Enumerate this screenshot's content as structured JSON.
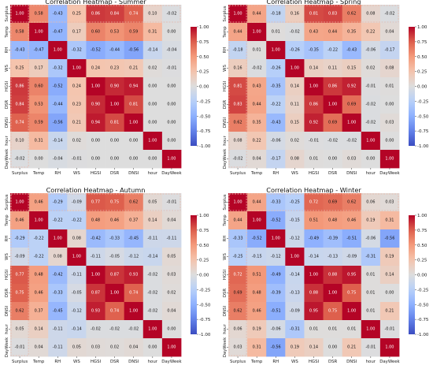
{
  "chart_data": [
    {
      "type": "heatmap",
      "title": "Correlation Heatmap - Summer",
      "labels": [
        "Surplus",
        "Temp",
        "RH",
        "WS",
        "HGSI",
        "DSR",
        "DNSI",
        "hour",
        "DayWeek"
      ],
      "colorbar": {
        "range": [
          -1,
          1
        ],
        "ticks": [
          "1.00",
          "0.75",
          "0.50",
          "0.25",
          "0.00",
          "-0.25",
          "-0.50",
          "-0.75",
          "-1.00"
        ]
      },
      "values": [
        [
          1.0,
          0.58,
          -0.43,
          0.25,
          0.86,
          0.84,
          0.74,
          0.1,
          -0.02
        ],
        [
          0.58,
          1.0,
          -0.47,
          0.17,
          0.6,
          0.53,
          0.59,
          0.31,
          -0.0
        ],
        [
          -0.43,
          -0.47,
          1.0,
          -0.32,
          -0.52,
          -0.44,
          -0.56,
          -0.14,
          -0.04
        ],
        [
          0.25,
          0.17,
          -0.32,
          1.0,
          0.24,
          0.23,
          0.21,
          0.02,
          -0.01
        ],
        [
          0.86,
          0.6,
          -0.52,
          0.24,
          1.0,
          0.9,
          0.94,
          0.0,
          0.0
        ],
        [
          0.84,
          0.53,
          -0.44,
          0.23,
          0.9,
          1.0,
          0.81,
          0.0,
          0.0
        ],
        [
          0.74,
          0.59,
          -0.56,
          0.21,
          0.94,
          0.81,
          1.0,
          0.0,
          -0.0
        ],
        [
          0.1,
          0.31,
          -0.14,
          0.02,
          0.0,
          0.0,
          0.0,
          1.0,
          -0.0
        ],
        [
          -0.02,
          -0.0,
          -0.04,
          -0.01,
          0.0,
          0.0,
          -0.0,
          -0.0,
          1.0
        ]
      ]
    },
    {
      "type": "heatmap",
      "title": "Correlation Heatmap - Spring",
      "labels": [
        "Surplus",
        "Temp",
        "RH",
        "WS",
        "HGSI",
        "DSR",
        "DNSI",
        "hour",
        "DayWeek"
      ],
      "colorbar": {
        "range": [
          -1,
          1
        ],
        "ticks": [
          "1.00",
          "0.75",
          "0.50",
          "0.25",
          "0.00",
          "-0.25",
          "-0.50",
          "-0.75",
          "-1.00"
        ]
      },
      "values": [
        [
          1.0,
          0.44,
          -0.18,
          0.16,
          0.81,
          0.83,
          0.62,
          0.08,
          -0.02
        ],
        [
          0.44,
          1.0,
          0.01,
          -0.02,
          0.43,
          0.44,
          0.35,
          0.22,
          0.04
        ],
        [
          -0.18,
          0.01,
          1.0,
          -0.26,
          -0.35,
          -0.22,
          -0.43,
          -0.06,
          -0.17
        ],
        [
          0.16,
          -0.02,
          -0.26,
          1.0,
          0.14,
          0.11,
          0.15,
          0.02,
          0.08
        ],
        [
          0.81,
          0.43,
          -0.35,
          0.14,
          1.0,
          0.86,
          0.92,
          -0.01,
          0.01
        ],
        [
          0.83,
          0.44,
          -0.22,
          0.11,
          0.86,
          1.0,
          0.69,
          -0.02,
          0.0
        ],
        [
          0.62,
          0.35,
          -0.43,
          0.15,
          0.92,
          0.69,
          1.0,
          -0.02,
          0.03
        ],
        [
          0.08,
          0.22,
          -0.06,
          0.02,
          -0.01,
          -0.02,
          -0.02,
          1.0,
          0.0
        ],
        [
          -0.02,
          0.04,
          -0.17,
          0.08,
          0.01,
          0.0,
          0.03,
          0.0,
          1.0
        ]
      ]
    },
    {
      "type": "heatmap",
      "title": "Correlation Heatmap - Autumn",
      "labels": [
        "Surplus",
        "Temp",
        "RH",
        "WS",
        "HGSI",
        "DSR",
        "DNSI",
        "hour",
        "DayWeek"
      ],
      "colorbar": {
        "range": [
          -1,
          1
        ],
        "ticks": [
          "1.00",
          "0.75",
          "0.50",
          "0.25",
          "0.00",
          "-0.25",
          "-0.50",
          "-0.75",
          "-1.00"
        ]
      },
      "values": [
        [
          1.0,
          0.46,
          -0.29,
          -0.09,
          0.77,
          0.75,
          0.62,
          0.05,
          -0.01
        ],
        [
          0.46,
          1.0,
          -0.22,
          -0.22,
          0.48,
          0.46,
          0.37,
          0.14,
          0.04
        ],
        [
          -0.29,
          -0.22,
          1.0,
          0.08,
          -0.42,
          -0.33,
          -0.45,
          -0.11,
          -0.11
        ],
        [
          -0.09,
          -0.22,
          0.08,
          1.0,
          -0.11,
          -0.05,
          -0.12,
          -0.14,
          0.05
        ],
        [
          0.77,
          0.48,
          -0.42,
          -0.11,
          1.0,
          0.87,
          0.93,
          -0.02,
          0.03
        ],
        [
          0.75,
          0.46,
          -0.33,
          -0.05,
          0.87,
          1.0,
          0.74,
          -0.02,
          0.02
        ],
        [
          0.62,
          0.37,
          -0.45,
          -0.12,
          0.93,
          0.74,
          1.0,
          -0.02,
          0.04
        ],
        [
          0.05,
          0.14,
          -0.11,
          -0.14,
          -0.02,
          -0.02,
          -0.02,
          1.0,
          -0.0
        ],
        [
          -0.01,
          0.04,
          -0.11,
          0.05,
          0.03,
          0.02,
          0.04,
          -0.0,
          1.0
        ]
      ]
    },
    {
      "type": "heatmap",
      "title": "Correlation Heatmap - Winter",
      "labels": [
        "Surplus",
        "Temp",
        "RH",
        "WS",
        "HGSI",
        "DSR",
        "DNSI",
        "hour",
        "DayWeek"
      ],
      "colorbar": {
        "range": [
          -1,
          1
        ],
        "ticks": [
          "1.00",
          "0.75",
          "0.50",
          "0.25",
          "0.00",
          "-0.25",
          "-0.50",
          "-0.75",
          "-1.00"
        ]
      },
      "values": [
        [
          1.0,
          0.44,
          -0.33,
          -0.25,
          0.72,
          0.69,
          0.62,
          0.06,
          0.03
        ],
        [
          0.44,
          1.0,
          -0.52,
          -0.15,
          0.51,
          0.48,
          0.46,
          0.19,
          0.31
        ],
        [
          -0.33,
          -0.52,
          1.0,
          -0.12,
          -0.49,
          -0.39,
          -0.51,
          -0.06,
          -0.56
        ],
        [
          -0.25,
          -0.15,
          -0.12,
          1.0,
          -0.14,
          -0.13,
          -0.09,
          -0.31,
          0.19
        ],
        [
          0.72,
          0.51,
          -0.49,
          -0.14,
          1.0,
          0.88,
          0.95,
          0.01,
          0.14
        ],
        [
          0.69,
          0.48,
          -0.39,
          -0.13,
          0.88,
          1.0,
          0.75,
          0.01,
          -0.0
        ],
        [
          0.62,
          0.46,
          -0.51,
          -0.09,
          0.95,
          0.75,
          1.0,
          0.01,
          0.21
        ],
        [
          0.06,
          0.19,
          -0.06,
          -0.31,
          0.01,
          0.01,
          0.01,
          1.0,
          -0.01
        ],
        [
          0.03,
          0.31,
          -0.56,
          0.19,
          0.14,
          -0.0,
          0.21,
          -0.01,
          1.0
        ]
      ]
    }
  ]
}
